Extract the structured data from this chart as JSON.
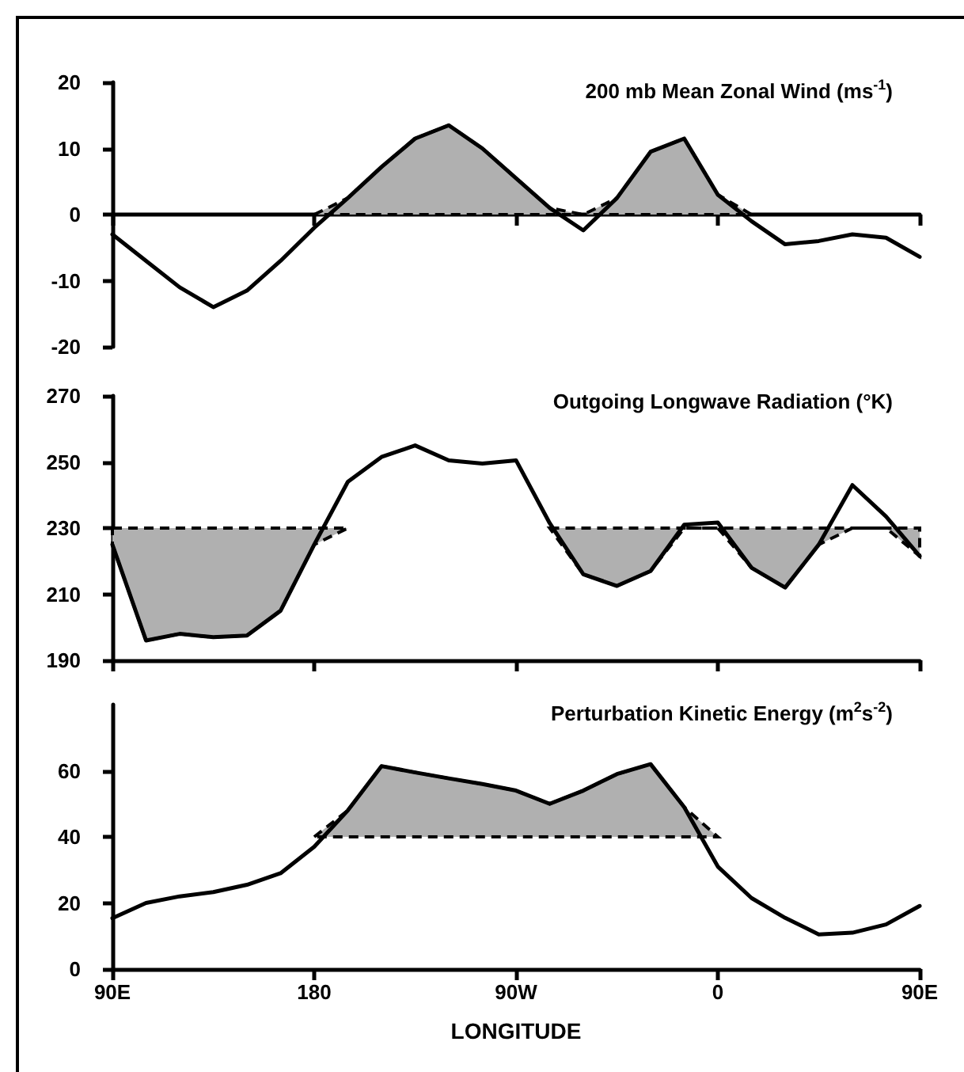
{
  "chart_data": [
    {
      "type": "line",
      "title": "200 mb Mean Zonal Wind (ms$^{-1}$)",
      "categories": [
        null,
        null,
        null,
        null,
        null,
        null,
        null,
        null,
        null,
        null,
        null,
        null,
        null,
        null,
        null,
        null,
        null,
        null,
        null,
        null,
        null,
        null,
        null,
        null,
        null
      ],
      "series": [
        {
          "color": "#000000",
          "values": [
            -3,
            -7,
            -11,
            -14,
            -11.5,
            -7,
            -2,
            2.5,
            7.2,
            11.5,
            13.5,
            10,
            5.5,
            1,
            -2.4,
            2.5,
            9.5,
            11.5,
            3,
            -1,
            -4.5,
            -4,
            -3,
            -3.5,
            -6.4
          ],
          "lower": [
            null,
            null,
            null,
            null,
            null,
            null,
            0,
            0,
            0,
            0,
            0,
            0,
            0,
            0,
            0,
            0,
            0,
            0,
            0,
            0,
            null,
            null,
            null,
            null,
            null
          ],
          "upper": [
            null,
            null,
            null,
            null,
            null,
            null,
            0,
            2.5,
            7.2,
            11.5,
            13.5,
            10,
            5.5,
            1,
            0,
            2.5,
            9.5,
            11.5,
            3,
            0,
            null,
            null,
            null,
            null,
            null
          ]
        }
      ],
      "ylim": [
        -20,
        20
      ],
      "yticks": [
        -20,
        -10,
        0,
        10,
        20
      ],
      "tick_labels": "y",
      "marker": "none",
      "line_style": "solid"
    },
    {
      "type": "line",
      "title": "Outgoing Longwave Radiation (°K)",
      "categories": [
        null,
        null,
        null,
        null,
        null,
        null,
        null,
        null,
        null,
        null,
        null,
        null,
        null,
        null,
        null,
        null,
        null,
        null,
        null,
        null,
        null,
        null,
        null,
        null,
        null
      ],
      "series": [
        {
          "color": "#000000",
          "values": [
            225,
            196,
            198,
            197,
            197.5,
            205,
            225,
            244,
            251.5,
            255,
            250.5,
            249.5,
            250.5,
            231.5,
            216,
            212.5,
            217,
            231,
            231.7,
            218,
            212,
            225,
            243,
            233.5,
            221.5
          ],
          "lower": [
            225,
            196,
            198,
            197,
            197.5,
            205,
            225,
            230,
            null,
            null,
            null,
            null,
            null,
            230,
            216,
            212.5,
            217,
            230,
            230,
            218,
            212,
            225,
            230,
            230,
            221.5
          ],
          "upper": [
            230,
            230,
            230,
            230,
            230,
            230,
            230,
            230,
            null,
            null,
            null,
            null,
            null,
            230,
            230,
            230,
            230,
            230,
            230,
            230,
            230,
            230,
            230,
            230,
            230
          ]
        }
      ],
      "ylim": [
        190,
        270
      ],
      "yticks": [
        190,
        210,
        230,
        250,
        270
      ],
      "tick_labels": "y",
      "marker": "none",
      "line_style": "solid"
    },
    {
      "type": "line",
      "title": "Perturbation Kinetic Energy (m$^{2}$s$^{-2}$)",
      "xlabel": "LONGITUDE",
      "categories": [
        "90E",
        null,
        null,
        null,
        null,
        null,
        "180",
        null,
        null,
        null,
        null,
        null,
        "90W",
        null,
        null,
        null,
        null,
        null,
        "0",
        null,
        null,
        null,
        null,
        null,
        "90E"
      ],
      "series": [
        {
          "color": "#000000",
          "values": [
            15.4,
            20,
            22,
            23.3,
            25.5,
            29,
            37,
            48,
            61.4,
            59.5,
            57.7,
            56,
            54,
            50,
            54,
            59,
            62,
            49,
            31,
            21.5,
            15.5,
            10.5,
            11,
            13.5,
            19.1
          ],
          "lower": [
            null,
            null,
            null,
            null,
            null,
            null,
            40,
            40,
            40,
            40,
            40,
            40,
            40,
            40,
            40,
            40,
            40,
            40,
            40,
            null,
            null,
            null,
            null,
            null,
            null
          ],
          "upper": [
            null,
            null,
            null,
            null,
            null,
            null,
            40,
            48,
            61.4,
            59.5,
            57.7,
            56,
            54,
            50,
            54,
            59,
            62,
            49,
            40,
            null,
            null,
            null,
            null,
            null,
            null
          ]
        }
      ],
      "ylim": [
        0,
        80
      ],
      "yticks": [
        0,
        20,
        40,
        60
      ],
      "marker": "none",
      "line_style": "solid"
    }
  ]
}
